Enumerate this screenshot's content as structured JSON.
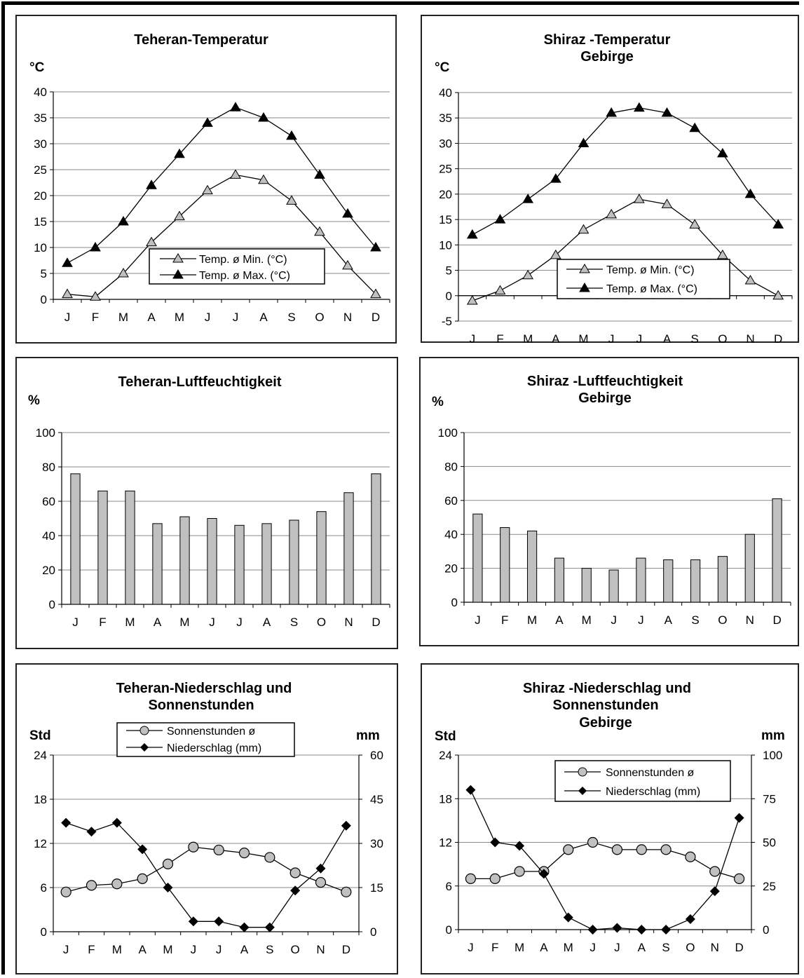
{
  "months": [
    "J",
    "F",
    "M",
    "A",
    "M",
    "J",
    "J",
    "A",
    "S",
    "O",
    "N",
    "D"
  ],
  "chart_data": [
    {
      "type": "line",
      "title": "Teheran-Temperatur",
      "ylabel": "°C",
      "ylim": [
        0,
        40
      ],
      "yticks": [
        0,
        5,
        10,
        15,
        20,
        25,
        30,
        35,
        40
      ],
      "legend": "bottom-center",
      "series": [
        {
          "name": "Temp. ø Min. (°C)",
          "marker": "triangle-open",
          "values": [
            1,
            0.5,
            5,
            11,
            16,
            21,
            24,
            23,
            19,
            13,
            6.5,
            1
          ]
        },
        {
          "name": "Temp. ø Max. (°C)",
          "marker": "triangle-filled",
          "values": [
            7,
            10,
            15,
            22,
            28,
            34,
            37,
            35,
            31.5,
            24,
            16.5,
            10
          ]
        }
      ]
    },
    {
      "type": "line",
      "title": "Shiraz -Temperatur",
      "subtitle": "Gebirge",
      "ylabel": "°C",
      "ylim": [
        -5,
        40
      ],
      "yticks": [
        -5,
        0,
        5,
        10,
        15,
        20,
        25,
        30,
        35,
        40
      ],
      "legend": "bottom-center",
      "series": [
        {
          "name": "Temp. ø Min. (°C)",
          "marker": "triangle-open",
          "values": [
            -1,
            1,
            4,
            8,
            13,
            16,
            19,
            18,
            14,
            8,
            3,
            0
          ]
        },
        {
          "name": "Temp. ø Max. (°C)",
          "marker": "triangle-filled",
          "values": [
            12,
            15,
            19,
            23,
            30,
            36,
            37,
            36,
            33,
            28,
            20,
            14
          ]
        }
      ]
    },
    {
      "type": "bar",
      "title": "Teheran-Luftfeuchtigkeit",
      "ylabel": "%",
      "ylim": [
        0,
        100
      ],
      "yticks": [
        0,
        20,
        40,
        60,
        80,
        100
      ],
      "values": [
        76,
        66,
        66,
        47,
        51,
        50,
        46,
        47,
        49,
        54,
        65,
        76
      ]
    },
    {
      "type": "bar",
      "title": "Shiraz -Luftfeuchtigkeit",
      "subtitle": "Gebirge",
      "ylabel": "%",
      "ylim": [
        0,
        100
      ],
      "yticks": [
        0,
        20,
        40,
        60,
        80,
        100
      ],
      "values": [
        52,
        44,
        42,
        26,
        20,
        19,
        26,
        25,
        25,
        27,
        40,
        61
      ]
    },
    {
      "type": "line",
      "title": "Teheran-Niederschlag und",
      "subtitle": "Sonnenstunden",
      "ylabel": "Std",
      "y2label": "mm",
      "ylim": [
        0,
        24
      ],
      "yticks": [
        0,
        6,
        12,
        18,
        24
      ],
      "y2lim": [
        0,
        60
      ],
      "y2ticks": [
        0,
        15,
        30,
        45,
        60
      ],
      "legend": "top-center",
      "series": [
        {
          "name": "Sonnenstunden ø",
          "axis": "left",
          "marker": "circle",
          "values": [
            5.4,
            6.3,
            6.5,
            7.2,
            9.2,
            11.5,
            11.1,
            10.7,
            10.1,
            8,
            6.7,
            5.4
          ]
        },
        {
          "name": "Niederschlag (mm)",
          "axis": "right",
          "marker": "diamond",
          "values": [
            37,
            34,
            37,
            28,
            15,
            3.5,
            3.5,
            1.5,
            1.5,
            14,
            21.5,
            36
          ]
        }
      ]
    },
    {
      "type": "line",
      "title": "Shiraz -Niederschlag und",
      "subtitle": "Sonnenstunden",
      "subtitle2": "Gebirge",
      "ylabel": "Std",
      "y2label": "mm",
      "ylim": [
        0,
        24
      ],
      "yticks": [
        0,
        6,
        12,
        18,
        24
      ],
      "y2lim": [
        0,
        100
      ],
      "y2ticks": [
        0,
        25,
        50,
        75,
        100
      ],
      "legend": "top-center",
      "series": [
        {
          "name": "Sonnenstunden ø",
          "axis": "left",
          "marker": "circle",
          "values": [
            7,
            7,
            8,
            8,
            11,
            12,
            11,
            11,
            11,
            10,
            8,
            7
          ]
        },
        {
          "name": "Niederschlag (mm)",
          "axis": "right",
          "marker": "diamond",
          "values": [
            80,
            50,
            48,
            32,
            7,
            0,
            1,
            0,
            0,
            6,
            22,
            64
          ]
        }
      ]
    }
  ]
}
